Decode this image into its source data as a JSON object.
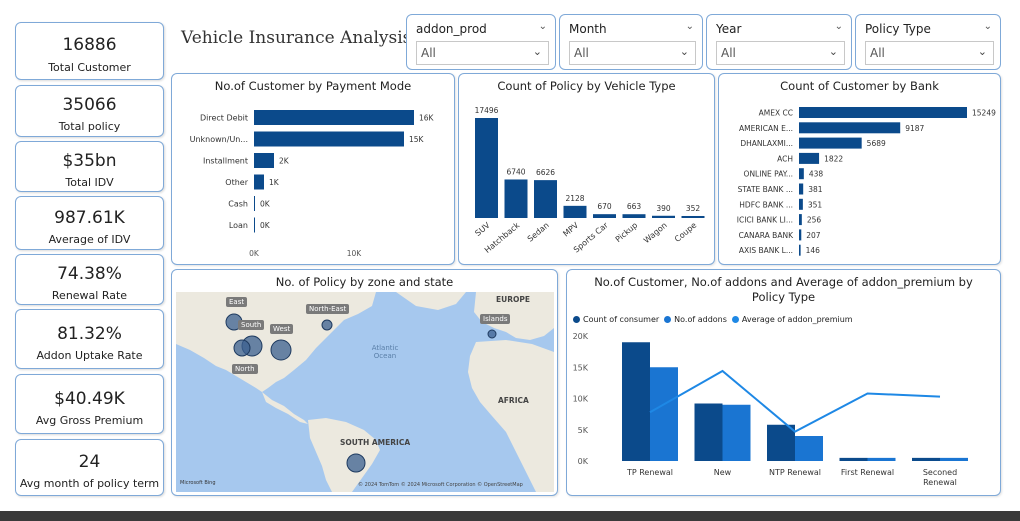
{
  "report_title": "Vehicle Insurance Analysis",
  "kpis": [
    {
      "value": "16886",
      "label": "Total Customer"
    },
    {
      "value": "35066",
      "label": "Total policy"
    },
    {
      "value": "$35bn",
      "label": "Total IDV"
    },
    {
      "value": "987.61K",
      "label": "Average of IDV"
    },
    {
      "value": "74.38%",
      "label": "Renewal Rate"
    },
    {
      "value": "81.32%",
      "label": "Addon Uptake Rate"
    },
    {
      "value": "$40.49K",
      "label": "Avg Gross Premium"
    },
    {
      "value": "24",
      "label": "Avg month of policy term"
    }
  ],
  "slicers": [
    {
      "title": "addon_prod",
      "value": "All"
    },
    {
      "title": "Month",
      "value": "All"
    },
    {
      "title": "Year",
      "value": "All"
    },
    {
      "title": "Policy Type",
      "value": "All"
    }
  ],
  "colors": {
    "bar": "#0b4a8b",
    "bar_light": "#1a75d2",
    "line": "#1e88e5",
    "border": "#7fa9d8"
  },
  "map": {
    "title": "No. of Policy by zone and state",
    "labels": [
      "East",
      "South",
      "West",
      "North",
      "North-East",
      "Islands",
      "EUROPE",
      "AFRICA",
      "SOUTH AMERICA",
      "Atlantic Ocean"
    ],
    "attribution_left": "Microsoft Bing",
    "attribution_right": "© 2024 TomTom © 2024 Microsoft Corporation © OpenStreetMap"
  },
  "chart_data": [
    {
      "type": "bar",
      "orientation": "horizontal",
      "title": "No.of Customer by Payment Mode",
      "categories": [
        "Direct Debit",
        "Unknown/Un...",
        "Installment",
        "Other",
        "Cash",
        "Loan"
      ],
      "values": [
        16000,
        15000,
        2000,
        1000,
        0,
        0
      ],
      "data_labels": [
        "16K",
        "15K",
        "2K",
        "1K",
        "0K",
        "0K"
      ],
      "x_ticks": [
        "0K",
        "10K"
      ],
      "xlim": [
        0,
        16000
      ]
    },
    {
      "type": "bar",
      "title": "Count of Policy by Vehicle Type",
      "categories": [
        "SUV",
        "Hatchback",
        "Sedan",
        "MPV",
        "Sports Car",
        "Pickup",
        "Wagon",
        "Coupe"
      ],
      "values": [
        17496,
        6740,
        6626,
        2128,
        670,
        663,
        390,
        352
      ]
    },
    {
      "type": "bar",
      "orientation": "horizontal",
      "title": "Count of Customer by Bank",
      "categories": [
        "AMEX CC",
        "AMERICAN E...",
        "DHANLAXMI...",
        "ACH",
        "ONLINE PAY...",
        "STATE BANK ...",
        "HDFC BANK ...",
        "ICICI BANK LI...",
        "CANARA BANK",
        "AXIS BANK L..."
      ],
      "values": [
        15249,
        9187,
        5689,
        1822,
        438,
        381,
        351,
        256,
        207,
        146
      ]
    },
    {
      "type": "bar",
      "title": "No.of Customer, No.of addons and Average of addon_premium by Policy Type",
      "categories": [
        "TP Renewal",
        "New",
        "NTP Renewal",
        "First Renewal",
        "Seconed Renewal"
      ],
      "series": [
        {
          "name": "Count of consumer",
          "values": [
            19000,
            9200,
            5800,
            500,
            500
          ]
        },
        {
          "name": "No.of addons",
          "values": [
            15000,
            9000,
            4000,
            500,
            500
          ]
        },
        {
          "name": "Average of addon_premium",
          "values": [
            7800,
            14400,
            4700,
            10800,
            10300
          ]
        }
      ],
      "y_ticks": [
        "0K",
        "5K",
        "10K",
        "15K",
        "20K"
      ],
      "ylim": [
        0,
        20000
      ]
    }
  ]
}
